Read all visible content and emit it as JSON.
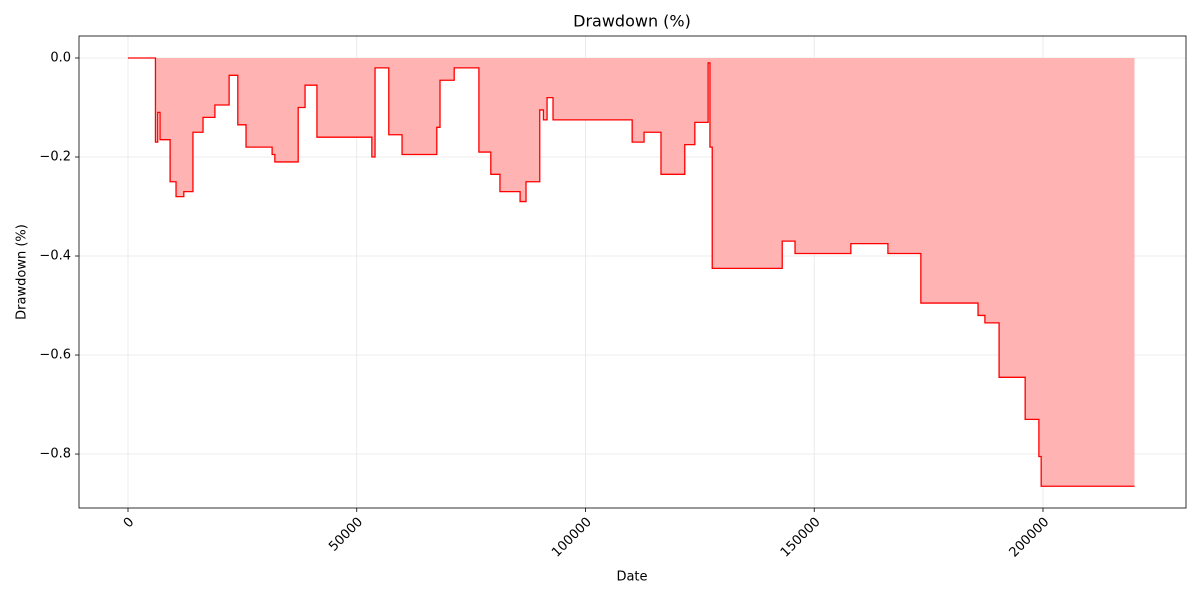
{
  "chart_data": {
    "type": "area",
    "title": "Drawdown (%)",
    "xlabel": "Date",
    "ylabel": "Drawdown (%)",
    "color": "#ff0000",
    "fill_color": "#ffb3b3",
    "grid": true,
    "xlim": [
      -10710,
      231257
    ],
    "ylim": [
      -0.909,
      0.0444
    ],
    "xticks": [
      0,
      50000,
      100000,
      150000,
      200000
    ],
    "yticks": [
      {
        "value": 0,
        "label": "0.0"
      },
      {
        "value": -0.2,
        "label": "−0.2"
      },
      {
        "value": -0.4,
        "label": "−0.4"
      },
      {
        "value": -0.6,
        "label": "−0.6"
      },
      {
        "value": -0.8,
        "label": "−0.8"
      }
    ],
    "x": [
      0,
      6000,
      6000,
      6500,
      6500,
      7000,
      7000,
      9200,
      9200,
      10500,
      10500,
      12200,
      12200,
      14200,
      14200,
      16400,
      16400,
      19000,
      19000,
      22100,
      22100,
      24000,
      24000,
      25800,
      25800,
      31500,
      31500,
      32100,
      32100,
      37200,
      37200,
      38700,
      38700,
      41300,
      41300,
      53300,
      53300,
      54000,
      54000,
      57000,
      57000,
      59900,
      59900,
      67500,
      67500,
      68200,
      68200,
      71300,
      71300,
      76700,
      76700,
      79300,
      79300,
      81300,
      81300,
      85700,
      85700,
      87000,
      87000,
      90000,
      90000,
      90800,
      90800,
      91600,
      91600,
      92900,
      92900,
      110200,
      110200,
      112800,
      112800,
      116500,
      116500,
      121700,
      121700,
      123900,
      123900,
      126800,
      126800,
      127200,
      127200,
      127700,
      127700,
      143000,
      143000,
      145800,
      145800,
      158000,
      158000,
      166100,
      166100,
      173300,
      173300,
      185800,
      185800,
      187300,
      187300,
      190400,
      190400,
      196100,
      196100,
      199100,
      199100,
      199600,
      199600,
      220000
    ],
    "values": [
      0,
      0,
      -0.17,
      -0.17,
      -0.11,
      -0.11,
      -0.165,
      -0.165,
      -0.25,
      -0.25,
      -0.28,
      -0.28,
      -0.27,
      -0.27,
      -0.15,
      -0.15,
      -0.12,
      -0.12,
      -0.095,
      -0.095,
      -0.035,
      -0.035,
      -0.135,
      -0.135,
      -0.18,
      -0.18,
      -0.195,
      -0.195,
      -0.21,
      -0.21,
      -0.1,
      -0.1,
      -0.055,
      -0.055,
      -0.16,
      -0.16,
      -0.2,
      -0.2,
      -0.02,
      -0.02,
      -0.155,
      -0.155,
      -0.195,
      -0.195,
      -0.14,
      -0.14,
      -0.045,
      -0.045,
      -0.02,
      -0.02,
      -0.19,
      -0.19,
      -0.235,
      -0.235,
      -0.27,
      -0.27,
      -0.29,
      -0.29,
      -0.25,
      -0.25,
      -0.105,
      -0.105,
      -0.125,
      -0.125,
      -0.08,
      -0.08,
      -0.125,
      -0.125,
      -0.17,
      -0.17,
      -0.15,
      -0.15,
      -0.235,
      -0.235,
      -0.175,
      -0.175,
      -0.13,
      -0.13,
      -0.01,
      -0.01,
      -0.18,
      -0.18,
      -0.425,
      -0.425,
      -0.37,
      -0.37,
      -0.395,
      -0.395,
      -0.375,
      -0.375,
      -0.395,
      -0.395,
      -0.495,
      -0.495,
      -0.52,
      -0.52,
      -0.535,
      -0.535,
      -0.645,
      -0.645,
      -0.73,
      -0.73,
      -0.805,
      -0.805,
      -0.865,
      -0.865
    ]
  }
}
